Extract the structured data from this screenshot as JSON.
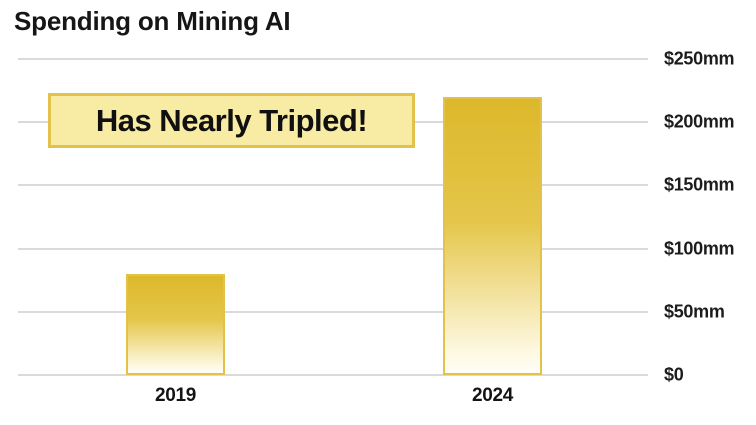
{
  "title": "Spending on Mining AI",
  "annotation": {
    "text": "Has Nearly Tripled!",
    "background": "#F8EBA4",
    "border_color": "#E2C24A"
  },
  "colors": {
    "bar_gradient_top": "#DCB82B",
    "bar_gradient_bottom": "#FFFEF8",
    "bar_border": "#E3C24B",
    "gridline": "#DADADA",
    "text": "#161616"
  },
  "chart_data": {
    "type": "bar",
    "title": "Spending on Mining AI",
    "categories": [
      "2019",
      "2024"
    ],
    "values": [
      80,
      220
    ],
    "value_unit": "$mm",
    "xlabel": "",
    "ylabel": "",
    "ylim": [
      0,
      250
    ],
    "yticks": [
      0,
      50,
      100,
      150,
      200,
      250
    ],
    "ytick_labels": [
      "$0",
      "$50mm",
      "$100mm",
      "$150mm",
      "$200mm",
      "$250mm"
    ],
    "grid": true,
    "tick_side": "right",
    "annotation": "Has Nearly Tripled!"
  }
}
